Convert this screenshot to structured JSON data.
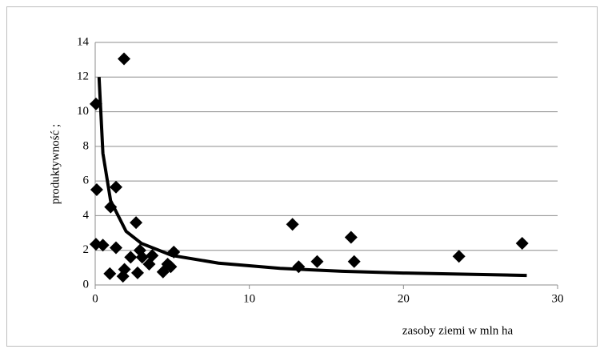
{
  "chart_data": {
    "type": "scatter",
    "x_label": "zasoby ziemi w mln ha",
    "y_label": "produktywność ;",
    "xlim": [
      0,
      30
    ],
    "xticks": [
      0,
      10,
      20,
      30
    ],
    "ylim": [
      0,
      14
    ],
    "yticks": [
      0,
      2,
      4,
      6,
      8,
      10,
      12,
      14
    ],
    "grid": true,
    "series": [
      {
        "color": "#000000",
        "x": [
          0.05,
          1.87,
          0.1,
          1.35,
          1.0,
          0.05,
          0.5,
          1.35,
          0.95,
          1.8,
          1.9,
          2.65,
          2.3,
          2.75,
          2.9,
          3.05,
          3.5,
          3.7,
          4.4,
          4.7,
          4.9,
          5.1,
          12.8,
          13.2,
          14.4,
          16.6,
          16.8,
          23.6,
          27.7
        ],
        "values": [
          10.45,
          13.05,
          5.5,
          5.65,
          4.5,
          2.35,
          2.3,
          2.15,
          0.65,
          0.5,
          0.9,
          3.6,
          1.6,
          0.7,
          2.0,
          1.6,
          1.2,
          1.7,
          0.75,
          1.2,
          1.05,
          1.9,
          3.5,
          1.05,
          1.35,
          2.75,
          1.35,
          1.65,
          2.4
        ]
      }
    ],
    "trendline": {
      "color": "#000000",
      "x": [
        0.25,
        0.5,
        1,
        2,
        3,
        5,
        8,
        12,
        16,
        20,
        28
      ],
      "values": [
        12,
        7.6,
        4.86,
        3.1,
        2.4,
        1.7,
        1.26,
        0.96,
        0.79,
        0.69,
        0.55
      ]
    }
  }
}
